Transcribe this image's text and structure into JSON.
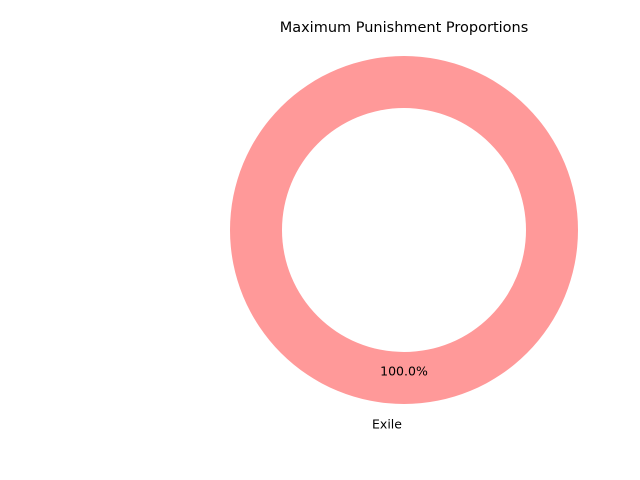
{
  "chart_data": {
    "type": "pie",
    "title": "Maximum Punishment Proportions",
    "categories": [
      "Exile"
    ],
    "values": [
      100
    ],
    "percent_labels": [
      "100.0%"
    ],
    "colors": [
      "#ff9999"
    ],
    "donut": true
  }
}
